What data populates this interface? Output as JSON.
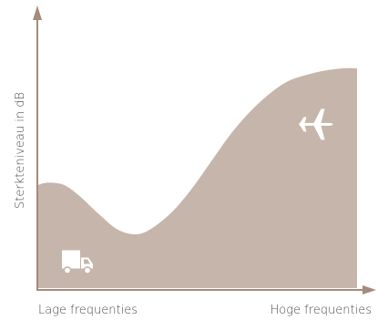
{
  "chart_data": {
    "type": "area",
    "title": "",
    "xlabel_left": "Lage frequenties",
    "xlabel_right": "Hoge frequenties",
    "ylabel": "Sterkteniveau in dB",
    "x_ticks": false,
    "y_ticks": false,
    "grid": false,
    "legend": "none",
    "xlim": [
      0,
      1
    ],
    "ylim": [
      0,
      1
    ],
    "series": [
      {
        "x": [
          0.0,
          0.03,
          0.08,
          0.13,
          0.19,
          0.25,
          0.31,
          0.36,
          0.42,
          0.48,
          0.54,
          0.6,
          0.66,
          0.72,
          0.78,
          0.84,
          0.9,
          0.96,
          1.0
        ],
        "values": [
          0.46,
          0.47,
          0.46,
          0.41,
          0.33,
          0.26,
          0.24,
          0.27,
          0.34,
          0.44,
          0.56,
          0.68,
          0.78,
          0.86,
          0.92,
          0.95,
          0.97,
          0.98,
          0.98
        ]
      }
    ],
    "annotations": [
      {
        "icon": "truck-icon",
        "x": 0.12,
        "y": 0.12
      },
      {
        "icon": "airplane-icon",
        "x": 0.87,
        "y": 0.73
      }
    ],
    "colors": {
      "area": "#c6b5aa",
      "axis": "#a48b7d",
      "icon": "#ffffff"
    }
  }
}
